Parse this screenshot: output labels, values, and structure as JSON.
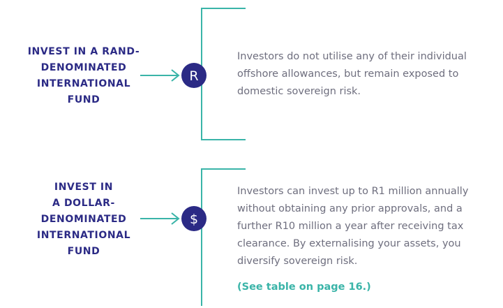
{
  "sections": [
    {
      "label": [
        "INVEST IN A RAND-",
        "DENOMINATED",
        "INTERNATIONAL",
        "FUND"
      ],
      "icon": "R",
      "description": [
        "Investors do not utilise any of their individual",
        "offshore allowances, but remain exposed to",
        "domestic sovereign risk."
      ]
    },
    {
      "label": [
        "INVEST IN",
        "A DOLLAR-",
        "DENOMINATED",
        "INTERNATIONAL",
        "FUND"
      ],
      "icon": "$",
      "description": [
        "Investors can invest up to R1 million annually",
        "without obtaining any prior approvals, and a",
        "further R10 million a year after receiving tax",
        "clearance. By externalising your assets, you",
        "diversify sovereign risk."
      ],
      "link": "(See table on page 16.)"
    }
  ]
}
